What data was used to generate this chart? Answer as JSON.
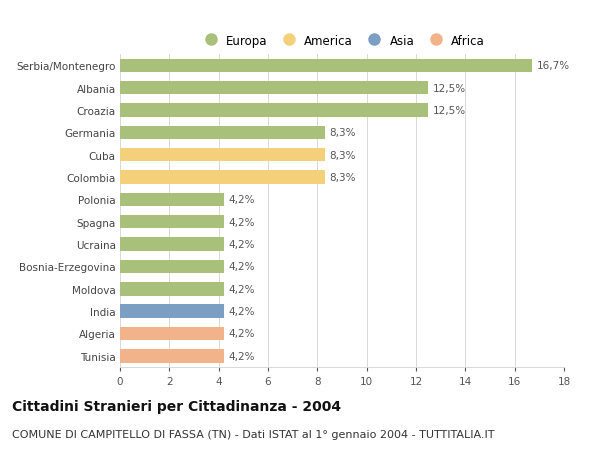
{
  "categories": [
    "Tunisia",
    "Algeria",
    "India",
    "Moldova",
    "Bosnia-Erzegovina",
    "Ucraina",
    "Spagna",
    "Polonia",
    "Colombia",
    "Cuba",
    "Germania",
    "Croazia",
    "Albania",
    "Serbia/Montenegro"
  ],
  "values": [
    4.2,
    4.2,
    4.2,
    4.2,
    4.2,
    4.2,
    4.2,
    4.2,
    8.3,
    8.3,
    8.3,
    12.5,
    12.5,
    16.7
  ],
  "labels": [
    "4,2%",
    "4,2%",
    "4,2%",
    "4,2%",
    "4,2%",
    "4,2%",
    "4,2%",
    "4,2%",
    "8,3%",
    "8,3%",
    "8,3%",
    "12,5%",
    "12,5%",
    "16,7%"
  ],
  "colors": [
    "#f2b28a",
    "#f2b28a",
    "#7a9fc2",
    "#a8c07a",
    "#a8c07a",
    "#a8c07a",
    "#a8c07a",
    "#a8c07a",
    "#f5d07a",
    "#f5d07a",
    "#a8c07a",
    "#a8c07a",
    "#a8c07a",
    "#a8c07a"
  ],
  "legend_labels": [
    "Europa",
    "America",
    "Asia",
    "Africa"
  ],
  "legend_colors": [
    "#a8c07a",
    "#f5d07a",
    "#7a9fc2",
    "#f2b28a"
  ],
  "xlim": [
    0,
    18
  ],
  "xticks": [
    0,
    2,
    4,
    6,
    8,
    10,
    12,
    14,
    16,
    18
  ],
  "title": "Cittadini Stranieri per Cittadinanza - 2004",
  "subtitle": "COMUNE DI CAMPITELLO DI FASSA (TN) - Dati ISTAT al 1° gennaio 2004 - TUTTITALIA.IT",
  "bg_color": "#ffffff",
  "grid_color": "#d8d8d8",
  "bar_height": 0.6,
  "title_fontsize": 10,
  "subtitle_fontsize": 8,
  "label_fontsize": 7.5,
  "tick_fontsize": 7.5,
  "legend_fontsize": 8.5
}
